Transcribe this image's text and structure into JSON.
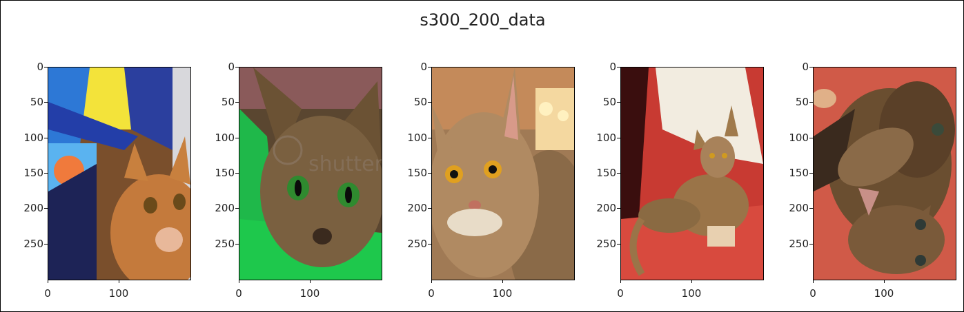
{
  "figure": {
    "title": "s300_200_data",
    "y_ticks": [
      "0",
      "50",
      "100",
      "150",
      "200",
      "250"
    ],
    "x_ticks": [
      "0",
      "100"
    ],
    "images": [
      {
        "label": "orange tabby kitten under blue and yellow blanket"
      },
      {
        "label": "abyssinian cat with green eyes",
        "watermark": "shutter"
      },
      {
        "label": "abyssinian cat with amber eyes"
      },
      {
        "label": "abyssinian cat lying on red couch"
      },
      {
        "label": "two abyssinian kittens on red blanket"
      }
    ]
  }
}
